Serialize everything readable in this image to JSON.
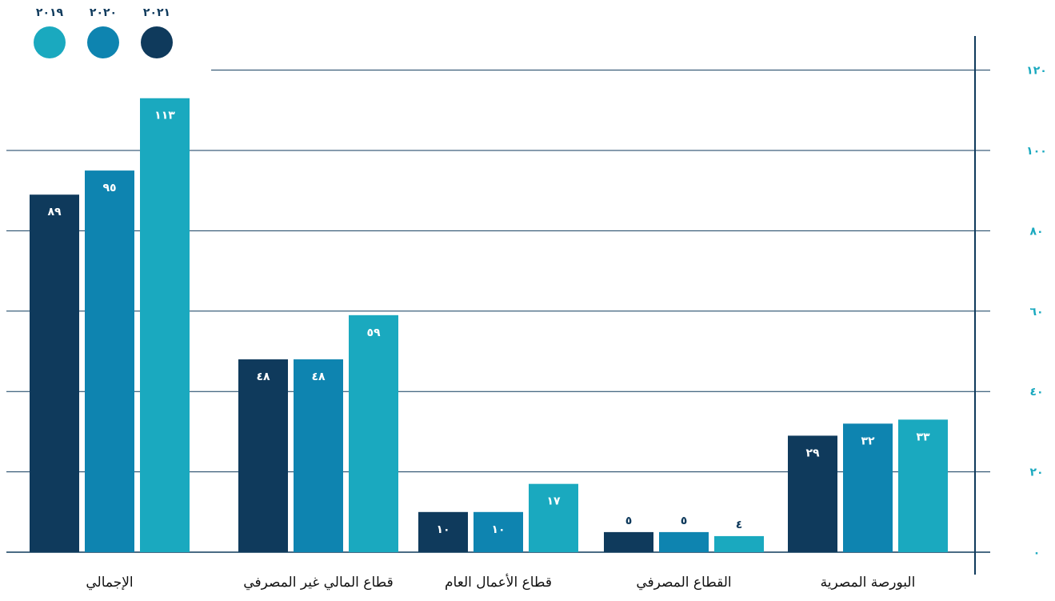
{
  "colors": {
    "grid": "#0f3a5c",
    "tick": "#1aa9bf",
    "category": "#111111"
  },
  "chart_data": {
    "type": "bar",
    "title": "",
    "xlabel": "",
    "ylabel": "",
    "ylim": [
      0,
      120
    ],
    "yticks": [
      0,
      20,
      40,
      60,
      80,
      100,
      120
    ],
    "ytick_labels": [
      "٠",
      "٢٠",
      "٤٠",
      "٦٠",
      "٨٠",
      "١٠٠",
      "١٢٠"
    ],
    "grid": true,
    "legend_position": "top-left",
    "categories": [
      "البورصة المصرية",
      "القطاع المصرفي",
      "قطاع الأعمال العام",
      "قطاع المالي غير المصرفي",
      "الإجمالي"
    ],
    "series": [
      {
        "name": "٢٠١٩",
        "color": "#1aa9bf",
        "values": [
          33,
          4,
          17,
          59,
          113
        ],
        "labels": [
          "٣٣",
          "٤",
          "١٧",
          "٥٩",
          "١١٣"
        ]
      },
      {
        "name": "٢٠٢٠",
        "color": "#0e84b0",
        "values": [
          32,
          5,
          10,
          48,
          95
        ],
        "labels": [
          "٣٢",
          "٥",
          "١٠",
          "٤٨",
          "٩٥"
        ]
      },
      {
        "name": "٢٠٢١",
        "color": "#0f3a5c",
        "values": [
          29,
          5,
          10,
          48,
          89
        ],
        "labels": [
          "٢٩",
          "٥",
          "١٠",
          "٤٨",
          "٨٩"
        ]
      }
    ]
  }
}
